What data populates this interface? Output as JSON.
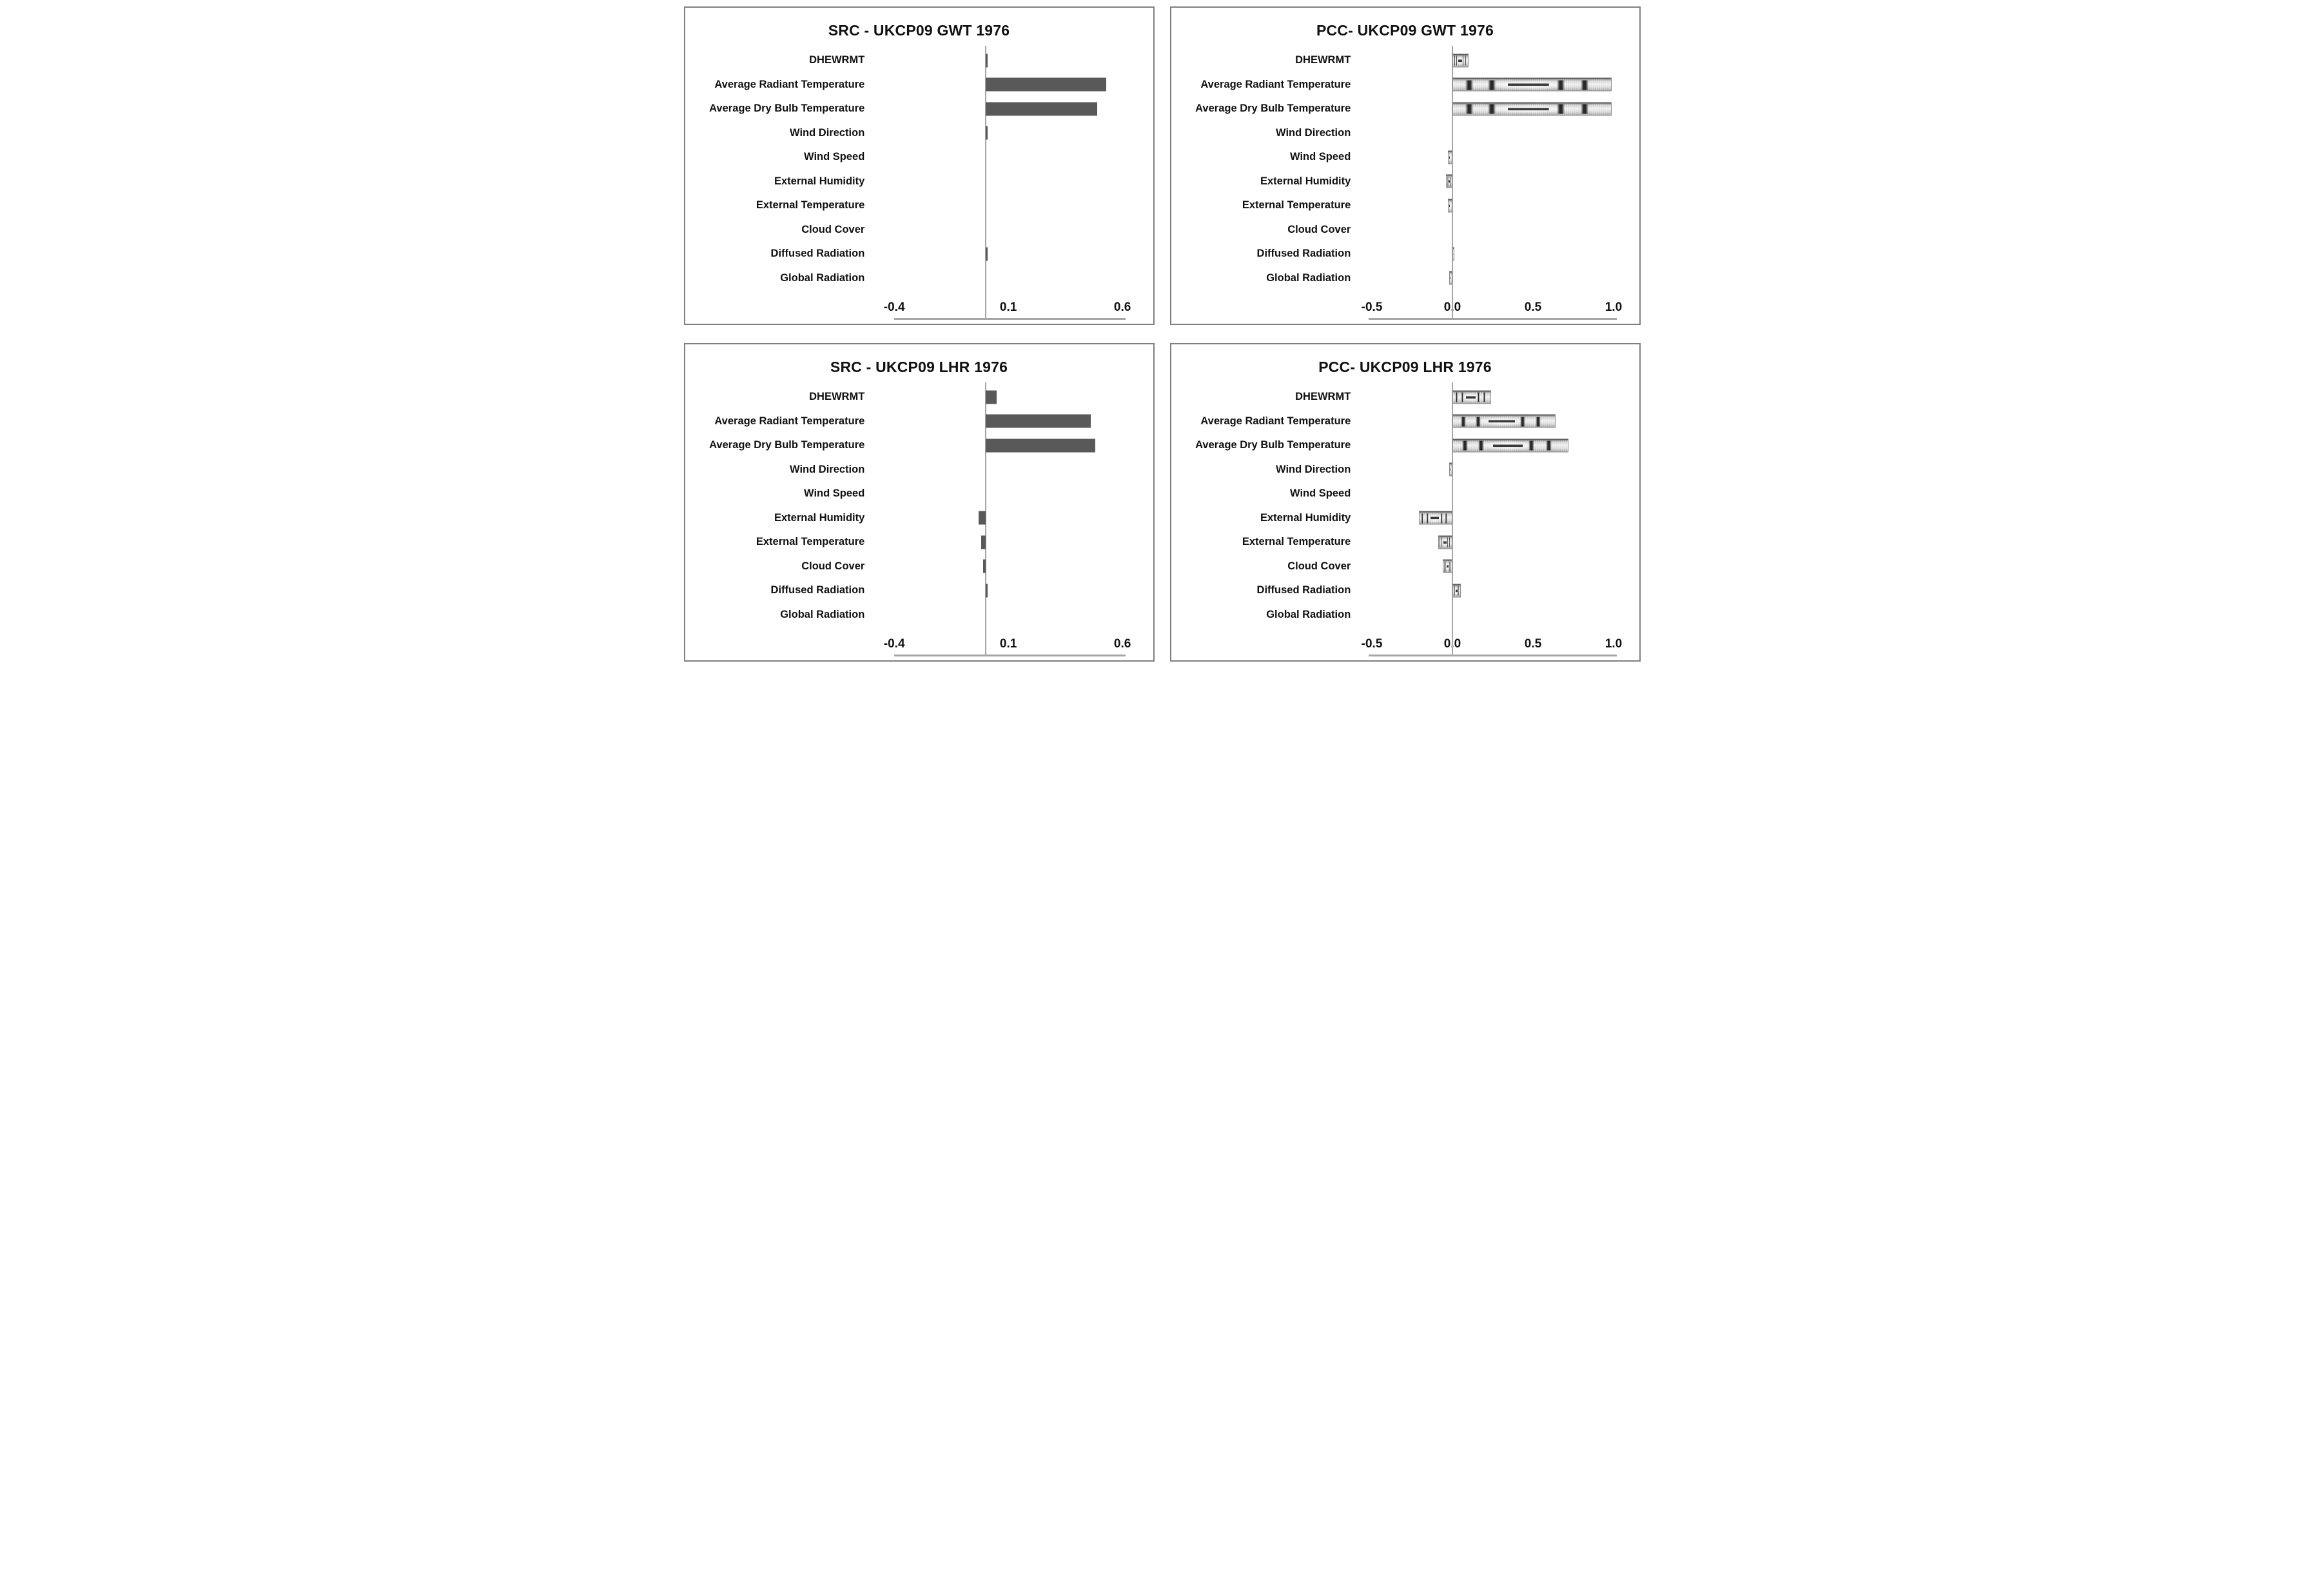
{
  "page": {
    "background": "#ffffff"
  },
  "styles": {
    "src_bar_color": "#595959",
    "pcc_bar_base_color": "#d8d8d8",
    "pcc_bar_mark_color": "#383838",
    "axis_line_color": "#a6a6a6",
    "panel_border_color": "#7f7f7f",
    "text_color": "#111111"
  },
  "chart_data": [
    {
      "type": "bar",
      "orientation": "horizontal",
      "title": "SRC - UKCP09 GWT 1976",
      "bar_style": "solid",
      "categories": [
        "DHEWRMT",
        "Average Radiant Temperature",
        "Average Dry Bulb Temperature",
        "Wind Direction",
        "Wind Speed",
        "External Humidity",
        "External Temperature",
        "Cloud Cover",
        "Diffused Radiation",
        "Global Radiation"
      ],
      "values": [
        0.01,
        0.53,
        0.49,
        0.01,
        0,
        0,
        0,
        0,
        0.01,
        0
      ],
      "xticks": [
        -0.4,
        0.1,
        0.6
      ],
      "xtick_labels": [
        "-0.4",
        "0.1",
        "0.6"
      ],
      "xlim": [
        -0.49,
        0.7
      ],
      "axis_span": [
        -0.4,
        0.615
      ],
      "xlabel": "",
      "ylabel": "",
      "grid": "off",
      "legend": "none"
    },
    {
      "type": "bar",
      "orientation": "horizontal",
      "title": "PCC- UKCP09 GWT 1976",
      "bar_style": "textured",
      "categories": [
        "DHEWRMT",
        "Average Radiant Temperature",
        "Average Dry Bulb Temperature",
        "Wind Direction",
        "Wind Speed",
        "External Humidity",
        "External Temperature",
        "Cloud Cover",
        "Diffused Radiation",
        "Global Radiation"
      ],
      "values": [
        0.1,
        0.99,
        0.99,
        0,
        -0.03,
        -0.04,
        -0.03,
        0,
        0.01,
        -0.02
      ],
      "xticks": [
        -0.5,
        0.0,
        0.5,
        1.0
      ],
      "xtick_labels": [
        "-0.5",
        "0.0",
        "0.5",
        "1.0"
      ],
      "xlim": [
        -0.575,
        1.11
      ],
      "axis_span": [
        -0.52,
        1.02
      ],
      "xlabel": "",
      "ylabel": "",
      "grid": "off",
      "legend": "none"
    },
    {
      "type": "bar",
      "orientation": "horizontal",
      "title": "SRC - UKCP09 LHR 1976",
      "bar_style": "solid",
      "categories": [
        "DHEWRMT",
        "Average Radiant Temperature",
        "Average Dry Bulb Temperature",
        "Wind Direction",
        "Wind Speed",
        "External Humidity",
        "External Temperature",
        "Cloud Cover",
        "Diffused Radiation",
        "Global Radiation"
      ],
      "values": [
        0.05,
        0.46,
        0.48,
        0,
        0,
        -0.03,
        -0.02,
        -0.01,
        0.01,
        0
      ],
      "xticks": [
        -0.4,
        0.1,
        0.6
      ],
      "xtick_labels": [
        "-0.4",
        "0.1",
        "0.6"
      ],
      "xlim": [
        -0.49,
        0.7
      ],
      "axis_span": [
        -0.4,
        0.615
      ],
      "xlabel": "",
      "ylabel": "",
      "grid": "off",
      "legend": "none"
    },
    {
      "type": "bar",
      "orientation": "horizontal",
      "title": "PCC- UKCP09 LHR 1976",
      "bar_style": "textured",
      "categories": [
        "DHEWRMT",
        "Average Radiant Temperature",
        "Average Dry Bulb Temperature",
        "Wind Direction",
        "Wind Speed",
        "External Humidity",
        "External Temperature",
        "Cloud Cover",
        "Diffused Radiation",
        "Global Radiation"
      ],
      "values": [
        0.24,
        0.64,
        0.72,
        -0.02,
        0,
        -0.21,
        -0.09,
        -0.06,
        0.05,
        0
      ],
      "xticks": [
        -0.5,
        0.0,
        0.5,
        1.0
      ],
      "xtick_labels": [
        "-0.5",
        "0.0",
        "0.5",
        "1.0"
      ],
      "xlim": [
        -0.575,
        1.11
      ],
      "axis_span": [
        -0.52,
        1.02
      ],
      "xlabel": "",
      "ylabel": "",
      "grid": "off",
      "legend": "none"
    }
  ]
}
